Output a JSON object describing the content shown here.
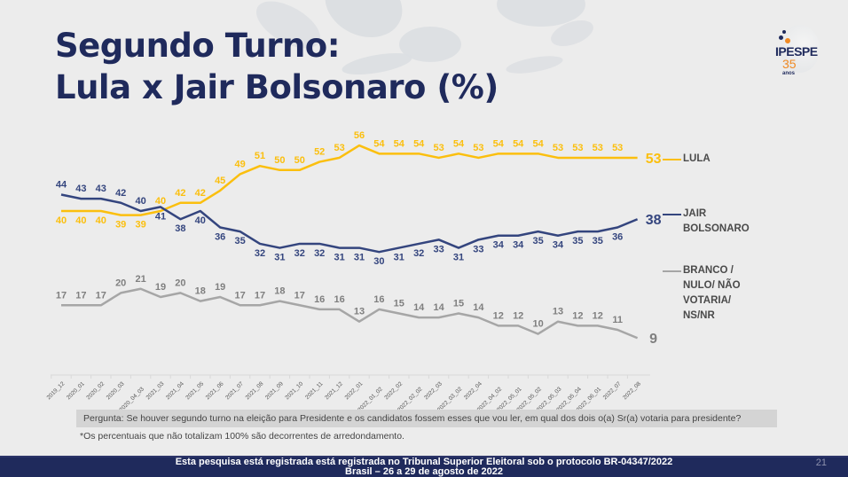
{
  "slide": {
    "title_line1": "Segundo Turno:",
    "title_line2": "Lula x Jair Bolsonaro (%)",
    "logo": {
      "name": "IPESPE",
      "years": "35",
      "anos": "anos"
    },
    "question": "Pergunta:  Se houver segundo turno na eleição para Presidente e os candidatos fossem esses que vou ler, em qual dos dois o(a) Sr(a) votaria para presidente?",
    "note": "*Os percentuais que não totalizam 100% são decorrentes de arredondamento.",
    "footer_line1": "Esta pesquisa está registrada está registrada no Tribunal Superior Eleitoral sob o protocolo BR-04347/2022",
    "footer_line2": "Brasil – 26 a 29 de agosto de 2022",
    "page_number": "21"
  },
  "legend": {
    "lula": "LULA",
    "bolsonaro_line1": "JAIR",
    "bolsonaro_line2": "BOLSONARO",
    "branco_line1": "BRANCO /",
    "branco_line2": "NULO/ NÃO",
    "branco_line3": "VOTARIA/",
    "branco_line4": "NS/NR"
  },
  "colors": {
    "lula": "#fbbf0e",
    "bolsonaro": "#34457e",
    "branco": "#a6a6a6",
    "title": "#1f2a5c",
    "footer_bg": "#1f2a5c"
  },
  "chart_data": {
    "type": "line",
    "title": "Segundo Turno: Lula x Jair Bolsonaro (%)",
    "xlabel": "",
    "ylabel": "%",
    "grid": false,
    "legend_position": "right",
    "categories": [
      "2019_12",
      "2020_01",
      "2020_02",
      "2020_03",
      "2020_04_03",
      "2021_03",
      "2021_04",
      "2021_05",
      "2021_06",
      "2021_07",
      "2021_08",
      "2021_09",
      "2021_10",
      "2021_11",
      "2021_12",
      "2022_01",
      "2022_01_02",
      "2022_02",
      "2022_02_02",
      "2022_03",
      "2022_03_02",
      "2022_04",
      "2022_04_02",
      "2022_05_01",
      "2022_05_02",
      "2022_05_03",
      "2022_05_04",
      "2022_06_01",
      "2022_07",
      "2022_08"
    ],
    "series": [
      {
        "name": "LULA",
        "values": [
          40,
          40,
          40,
          39,
          39,
          40,
          42,
          42,
          45,
          49,
          51,
          50,
          50,
          52,
          53,
          56,
          54,
          54,
          54,
          53,
          54,
          53,
          54,
          54,
          54,
          53,
          53,
          53,
          53,
          53
        ]
      },
      {
        "name": "JAIR BOLSONARO",
        "values": [
          44,
          43,
          43,
          42,
          40,
          41,
          38,
          40,
          36,
          35,
          32,
          31,
          32,
          32,
          31,
          31,
          30,
          31,
          32,
          33,
          31,
          33,
          34,
          34,
          35,
          34,
          35,
          35,
          36,
          38
        ]
      },
      {
        "name": "BRANCO / NULO/ NÃO VOTARIA/ NS/NR",
        "values": [
          17,
          17,
          17,
          20,
          21,
          19,
          20,
          18,
          19,
          17,
          17,
          18,
          17,
          16,
          16,
          13,
          16,
          15,
          14,
          14,
          15,
          14,
          12,
          12,
          10,
          13,
          12,
          12,
          11,
          9
        ]
      }
    ]
  }
}
